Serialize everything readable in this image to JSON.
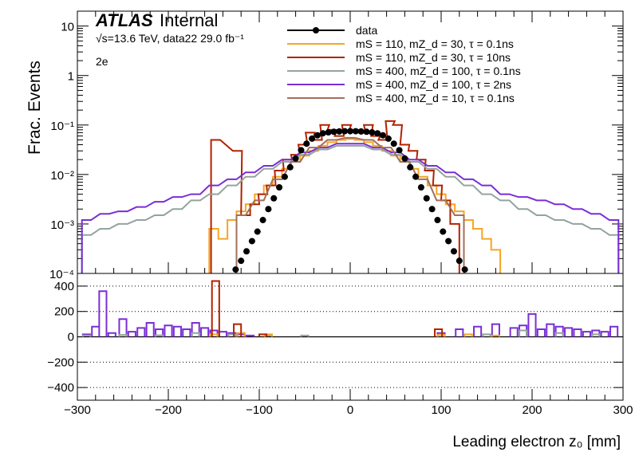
{
  "chart_data": [
    {
      "type": "line",
      "title": "",
      "ylabel": "Frac. Events",
      "xlabel": "",
      "yscale": "log",
      "ylim": [
        0.0001,
        20
      ],
      "xlim": [
        -300,
        300
      ],
      "y_tick_labels": [
        "10⁻⁴",
        "10⁻³",
        "10⁻²",
        "10⁻¹",
        "1",
        "10"
      ],
      "y_tick_values": [
        0.0001,
        0.001,
        0.01,
        0.1,
        1,
        10
      ],
      "annotations": {
        "experiment": "ATLAS",
        "status": "Internal",
        "energy": "√s=13.6 TeV, data22 29.0 fb⁻¹",
        "channel": "2e"
      },
      "legend_position": "top-right",
      "series": [
        {
          "name": "data",
          "style": "points",
          "color": "#000000",
          "x": [
            -126,
            -120,
            -114,
            -108,
            -102,
            -96,
            -90,
            -84,
            -78,
            -72,
            -66,
            -60,
            -54,
            -48,
            -42,
            -36,
            -30,
            -24,
            -18,
            -12,
            -6,
            0,
            6,
            12,
            18,
            24,
            30,
            36,
            42,
            48,
            54,
            60,
            66,
            72,
            78,
            84,
            90,
            96,
            102,
            108,
            114,
            120,
            126
          ],
          "values": [
            0.00012,
            0.00018,
            0.00028,
            0.00045,
            0.0007,
            0.0012,
            0.002,
            0.0033,
            0.0055,
            0.009,
            0.014,
            0.021,
            0.031,
            0.042,
            0.053,
            0.062,
            0.068,
            0.071,
            0.073,
            0.074,
            0.075,
            0.075,
            0.075,
            0.074,
            0.073,
            0.071,
            0.068,
            0.062,
            0.053,
            0.042,
            0.031,
            0.021,
            0.014,
            0.009,
            0.0055,
            0.0033,
            0.002,
            0.0012,
            0.0007,
            0.00045,
            0.00028,
            0.00018,
            0.00012
          ]
        },
        {
          "name": "mS = 110, mZ_d = 30, τ = 0.1ns",
          "style": "hist",
          "color": "#F5A623",
          "x": [
            -150,
            -140,
            -130,
            -120,
            -110,
            -100,
            -90,
            -80,
            -70,
            -60,
            -50,
            -40,
            -30,
            -20,
            -10,
            0,
            10,
            20,
            30,
            40,
            50,
            60,
            70,
            80,
            90,
            100,
            110,
            120,
            130,
            140,
            150,
            160
          ],
          "values": [
            0.0008,
            0.0005,
            0.0012,
            0.0018,
            0.0025,
            0.004,
            0.006,
            0.009,
            0.013,
            0.018,
            0.024,
            0.03,
            0.038,
            0.045,
            0.05,
            0.052,
            0.05,
            0.045,
            0.038,
            0.03,
            0.024,
            0.018,
            0.013,
            0.009,
            0.006,
            0.004,
            0.0025,
            0.0018,
            0.0012,
            0.0008,
            0.0005,
            0.0003
          ]
        },
        {
          "name": "mS = 110, mZ_d = 30, τ = 10ns",
          "style": "hist",
          "color": "#B22200",
          "x": [
            -148,
            -124,
            -115,
            -105,
            -96,
            -87,
            -78,
            -69,
            -60,
            -52,
            -44,
            -36,
            -28,
            -20,
            -12,
            -4,
            4,
            12,
            20,
            28,
            36,
            44,
            52,
            60,
            69,
            78,
            87,
            96,
            105,
            115
          ],
          "values": [
            0.05,
            0.03,
            0.0015,
            0.0025,
            0.004,
            0.006,
            0.012,
            0.02,
            0.025,
            0.04,
            0.07,
            0.05,
            0.1,
            0.08,
            0.06,
            0.1,
            0.08,
            0.07,
            0.1,
            0.06,
            0.05,
            0.12,
            0.1,
            0.04,
            0.03,
            0.02,
            0.012,
            0.006,
            0.003,
            0.001
          ]
        },
        {
          "name": "mS = 400, mZ_d = 100, τ = 0.1ns",
          "style": "hist",
          "color": "#94A39D",
          "x": [
            -290,
            -270,
            -250,
            -230,
            -210,
            -190,
            -170,
            -150,
            -130,
            -110,
            -90,
            -70,
            -50,
            -30,
            -10,
            10,
            30,
            50,
            70,
            90,
            110,
            130,
            150,
            170,
            190,
            210,
            230,
            250,
            270,
            290
          ],
          "values": [
            0.0006,
            0.0008,
            0.001,
            0.0012,
            0.0015,
            0.002,
            0.003,
            0.004,
            0.006,
            0.009,
            0.013,
            0.018,
            0.025,
            0.032,
            0.038,
            0.038,
            0.032,
            0.025,
            0.018,
            0.013,
            0.009,
            0.006,
            0.004,
            0.003,
            0.002,
            0.0015,
            0.0012,
            0.001,
            0.0008,
            0.0006
          ]
        },
        {
          "name": "mS = 400, mZ_d = 100, τ = 2ns",
          "style": "hist",
          "color": "#7A2ED6",
          "x": [
            -290,
            -270,
            -250,
            -230,
            -210,
            -190,
            -170,
            -150,
            -130,
            -110,
            -90,
            -70,
            -50,
            -30,
            -10,
            10,
            30,
            50,
            70,
            90,
            110,
            130,
            150,
            170,
            190,
            210,
            230,
            250,
            270,
            290
          ],
          "values": [
            0.0012,
            0.0016,
            0.0018,
            0.0022,
            0.0028,
            0.0035,
            0.004,
            0.006,
            0.008,
            0.011,
            0.015,
            0.02,
            0.028,
            0.035,
            0.042,
            0.042,
            0.035,
            0.028,
            0.02,
            0.015,
            0.011,
            0.008,
            0.006,
            0.004,
            0.0035,
            0.003,
            0.0025,
            0.002,
            0.0016,
            0.0012
          ]
        },
        {
          "name": "mS = 400, mZ_d = 10, τ = 0.1ns",
          "style": "hist",
          "color": "#A0705A",
          "x": [
            -120,
            -100,
            -80,
            -60,
            -40,
            -20,
            0,
            20,
            40,
            60,
            80,
            100,
            120
          ],
          "values": [
            0.0015,
            0.003,
            0.008,
            0.018,
            0.035,
            0.05,
            0.055,
            0.05,
            0.035,
            0.018,
            0.008,
            0.003,
            0.0015
          ]
        }
      ]
    },
    {
      "type": "line",
      "title": "",
      "ylabel": "",
      "xlabel": "Leading electron z₀ [mm]",
      "ylim": [
        -500,
        500
      ],
      "xlim": [
        -300,
        300
      ],
      "y_tick_labels": [
        "−400",
        "−200",
        "0",
        "200",
        "400"
      ],
      "y_tick_values": [
        -400,
        -200,
        0,
        200,
        400
      ],
      "x_tick_labels": [
        "−300",
        "−200",
        "−100",
        "0",
        "100",
        "200",
        "300"
      ],
      "x_tick_values": [
        -300,
        -200,
        -100,
        0,
        100,
        200,
        300
      ],
      "grid_y": "dotted at −400, −200, 200, 400",
      "series": [
        {
          "color": "#7A2ED6",
          "x": [
            -290,
            -280,
            -272,
            -262,
            -250,
            -240,
            -230,
            -220,
            -210,
            -200,
            -190,
            -180,
            -170,
            -160,
            -150,
            -140,
            -130,
            -120,
            -110,
            100,
            120,
            140,
            160,
            180,
            190,
            200,
            210,
            220,
            230,
            240,
            250,
            260,
            270,
            280,
            290
          ],
          "values": [
            20,
            80,
            360,
            30,
            140,
            40,
            70,
            110,
            60,
            90,
            80,
            60,
            110,
            70,
            50,
            40,
            30,
            20,
            10,
            30,
            60,
            80,
            100,
            70,
            90,
            180,
            60,
            100,
            80,
            70,
            60,
            40,
            50,
            40,
            80
          ]
        },
        {
          "color": "#94A39D",
          "x": [
            -290,
            -250,
            -210,
            -170,
            -130,
            -90,
            -50,
            150,
            190,
            230,
            270
          ],
          "values": [
            10,
            15,
            12,
            30,
            20,
            10,
            10,
            20,
            50,
            30,
            20
          ]
        },
        {
          "color": "#F5A623",
          "x": [
            -150,
            -120,
            -90,
            100,
            130,
            160
          ],
          "values": [
            20,
            30,
            20,
            15,
            20,
            10
          ]
        },
        {
          "color": "#B22200",
          "x": [
            -148,
            -124,
            -96,
            97
          ],
          "values": [
            440,
            100,
            20,
            60
          ]
        }
      ]
    }
  ]
}
